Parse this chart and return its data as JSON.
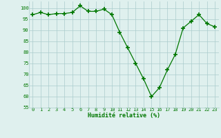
{
  "x": [
    0,
    1,
    2,
    3,
    4,
    5,
    6,
    7,
    8,
    9,
    10,
    11,
    12,
    13,
    14,
    15,
    16,
    17,
    18,
    19,
    20,
    21,
    22,
    23
  ],
  "y": [
    97,
    98,
    97,
    97.5,
    97.5,
    98,
    101,
    98.5,
    98.5,
    99.5,
    97,
    89,
    82,
    75,
    68,
    60,
    64,
    72,
    79,
    91,
    94,
    97,
    93,
    91.5
  ],
  "line_color": "#007700",
  "marker_color": "#007700",
  "bg_color": "#dff0ee",
  "grid_color": "#aacccc",
  "xlabel": "Humidité relative (%)",
  "xlabel_color": "#007700",
  "tick_color": "#007700",
  "ylim": [
    55,
    103
  ],
  "yticks": [
    55,
    60,
    65,
    70,
    75,
    80,
    85,
    90,
    95,
    100
  ],
  "xlim": [
    -0.5,
    23.5
  ],
  "xticks": [
    0,
    1,
    2,
    3,
    4,
    5,
    6,
    7,
    8,
    9,
    10,
    11,
    12,
    13,
    14,
    15,
    16,
    17,
    18,
    19,
    20,
    21,
    22,
    23
  ]
}
